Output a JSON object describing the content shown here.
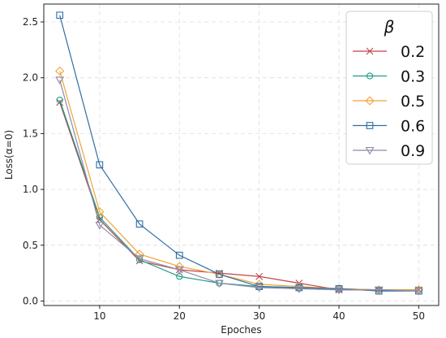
{
  "chart_data": {
    "type": "line",
    "xlabel": "Epoches",
    "ylabel": "Loss(α=0)",
    "xlim": [
      3,
      52.5
    ],
    "ylim": [
      -0.04,
      2.66
    ],
    "xticks": [
      10,
      20,
      30,
      40,
      50
    ],
    "yticks": [
      0.0,
      0.5,
      1.0,
      1.5,
      2.0,
      2.5
    ],
    "grid": true,
    "legend": {
      "title": "β",
      "placement": "top-right"
    },
    "series": [
      {
        "name": "0.2",
        "color": "#c0444f",
        "marker": "x",
        "x": [
          5,
          10,
          15,
          20,
          25,
          30,
          35,
          40,
          45,
          50
        ],
        "y": [
          1.78,
          0.73,
          0.36,
          0.28,
          0.25,
          0.22,
          0.16,
          0.1,
          0.1,
          0.1
        ]
      },
      {
        "name": "0.3",
        "color": "#1f9c8a",
        "marker": "circle",
        "x": [
          5,
          10,
          15,
          20,
          25,
          30,
          35,
          40,
          45,
          50
        ],
        "y": [
          1.8,
          0.75,
          0.37,
          0.22,
          0.16,
          0.13,
          0.12,
          0.11,
          0.1,
          0.1
        ]
      },
      {
        "name": "0.5",
        "color": "#f0a33a",
        "marker": "diamond",
        "x": [
          5,
          10,
          15,
          20,
          25,
          30,
          35,
          40,
          45,
          50
        ],
        "y": [
          2.06,
          0.8,
          0.42,
          0.31,
          0.24,
          0.15,
          0.13,
          0.11,
          0.1,
          0.1
        ]
      },
      {
        "name": "0.6",
        "color": "#2f6ea3",
        "marker": "square",
        "x": [
          5,
          10,
          15,
          20,
          25,
          30,
          35,
          40,
          45,
          50
        ],
        "y": [
          2.56,
          1.22,
          0.69,
          0.41,
          0.24,
          0.13,
          0.12,
          0.11,
          0.09,
          0.09
        ]
      },
      {
        "name": "0.9",
        "color": "#8c8ca8",
        "marker": "triangle-down",
        "x": [
          5,
          10,
          15,
          20,
          25,
          30,
          35,
          40,
          45,
          50
        ],
        "y": [
          1.98,
          0.68,
          0.38,
          0.28,
          0.16,
          0.12,
          0.11,
          0.1,
          0.1,
          0.09
        ]
      }
    ]
  }
}
